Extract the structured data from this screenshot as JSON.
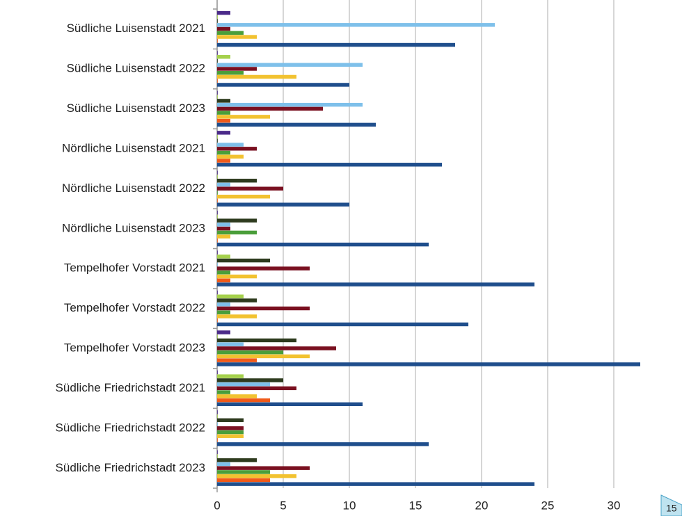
{
  "chart_data": {
    "type": "bar",
    "orientation": "horizontal",
    "categories": [
      "Südliche Luisenstadt 2021",
      "Südliche Luisenstadt 2022",
      "Südliche Luisenstadt 2023",
      "Nördliche Luisenstadt 2021",
      "Nördliche Luisenstadt 2022",
      "Nördliche Luisenstadt 2023",
      "Tempelhofer Vorstadt 2021",
      "Tempelhofer Vorstadt 2022",
      "Tempelhofer Vorstadt 2023",
      "Südliche Friedrichstadt 2021",
      "Südliche Friedrichstadt 2022",
      "Südliche Friedrichstadt 2023"
    ],
    "series": [
      {
        "color": "#4b2a8a",
        "values": [
          1,
          0,
          0,
          1,
          0,
          0,
          0,
          0,
          1,
          0,
          0,
          0
        ]
      },
      {
        "color": "#a5d14c",
        "values": [
          0,
          1,
          0,
          0,
          0,
          0,
          1,
          2,
          0,
          2,
          0,
          0
        ]
      },
      {
        "color": "#2e3b1e",
        "values": [
          0,
          0,
          1,
          0,
          3,
          3,
          4,
          3,
          6,
          5,
          2,
          3
        ]
      },
      {
        "color": "#7ec0ea",
        "values": [
          21,
          11,
          11,
          2,
          1,
          1,
          0,
          1,
          2,
          4,
          0,
          1
        ]
      },
      {
        "color": "#7a1020",
        "values": [
          1,
          3,
          8,
          3,
          5,
          1,
          7,
          7,
          9,
          6,
          2,
          7
        ]
      },
      {
        "color": "#4a9e3a",
        "values": [
          2,
          2,
          1,
          1,
          0,
          3,
          1,
          1,
          5,
          1,
          2,
          4
        ]
      },
      {
        "color": "#f2c230",
        "values": [
          3,
          6,
          4,
          2,
          4,
          1,
          3,
          3,
          7,
          3,
          2,
          6
        ]
      },
      {
        "color": "#f05a1a",
        "values": [
          0,
          0,
          1,
          1,
          0,
          0,
          1,
          0,
          3,
          4,
          0,
          4
        ]
      },
      {
        "color": "#1f4e8c",
        "values": [
          18,
          10,
          12,
          17,
          10,
          16,
          24,
          19,
          32,
          11,
          16,
          24
        ]
      }
    ],
    "xlim": [
      0,
      35
    ],
    "xticks": [
      0,
      5,
      10,
      15,
      20,
      25,
      30
    ],
    "grid": true
  },
  "page_number": "15"
}
